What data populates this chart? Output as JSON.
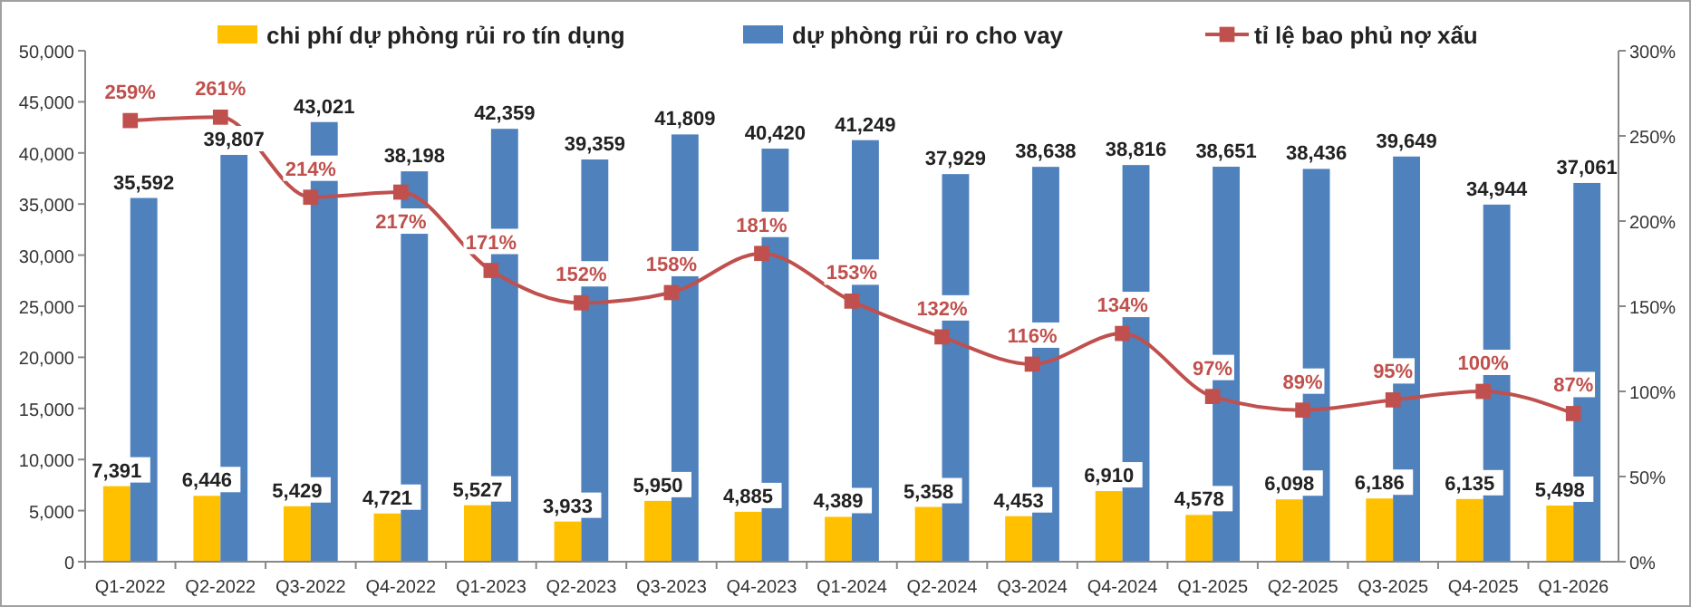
{
  "chart_data": {
    "type": "bar",
    "categories": [
      "Q1-2022",
      "Q2-2022",
      "Q3-2022",
      "Q4-2022",
      "Q1-2023",
      "Q2-2023",
      "Q3-2023",
      "Q4-2023",
      "Q1-2024",
      "Q2-2024",
      "Q3-2024",
      "Q4-2024",
      "Q1-2025",
      "Q2-2025",
      "Q3-2025",
      "Q4-2025",
      "Q1-2026"
    ],
    "series": [
      {
        "name": "chi phí dự phòng rủi ro tín dụng",
        "color": "#ffc000",
        "values": [
          7391,
          6446,
          5429,
          4721,
          5527,
          3933,
          5950,
          4885,
          4389,
          5358,
          4453,
          6910,
          4578,
          6098,
          6186,
          6135,
          5498
        ],
        "value_labels": [
          "7,391",
          "6,446",
          "5,429",
          "4,721",
          "5,527",
          "3,933",
          "5,950",
          "4,885",
          "4,389",
          "5,358",
          "4,453",
          "6,910",
          "4,578",
          "6,098",
          "6,186",
          "6,135",
          "5,498"
        ]
      },
      {
        "name": "dự phòng rủi ro cho vay",
        "color": "#4f81bd",
        "values": [
          35592,
          39807,
          43021,
          38198,
          42359,
          39359,
          41809,
          40420,
          41249,
          37929,
          38638,
          38816,
          38651,
          38436,
          39649,
          34944,
          37061
        ],
        "value_labels": [
          "35,592",
          "39,807",
          "43,021",
          "38,198",
          "42,359",
          "39,359",
          "41,809",
          "40,420",
          "41,249",
          "37,929",
          "38,638",
          "38,816",
          "38,651",
          "38,436",
          "39,649",
          "34,944",
          "37,061"
        ]
      },
      {
        "name": "tỉ lệ bao phủ nợ xấu",
        "type": "line",
        "axis": "y2",
        "color": "#c0504d",
        "marker": "square",
        "values": [
          259,
          261,
          214,
          217,
          171,
          152,
          158,
          181,
          153,
          132,
          116,
          134,
          97,
          89,
          95,
          100,
          87
        ],
        "value_labels": [
          "259%",
          "261%",
          "214%",
          "217%",
          "171%",
          "152%",
          "158%",
          "181%",
          "153%",
          "132%",
          "116%",
          "134%",
          "97%",
          "89%",
          "95%",
          "100%",
          "87%"
        ]
      }
    ],
    "ylim": [
      0,
      50000
    ],
    "yticks": [
      {
        "value": 0,
        "label": "0"
      },
      {
        "value": 5000,
        "label": "5,000"
      },
      {
        "value": 10000,
        "label": "10,000"
      },
      {
        "value": 15000,
        "label": "15,000"
      },
      {
        "value": 20000,
        "label": "20,000"
      },
      {
        "value": 25000,
        "label": "25,000"
      },
      {
        "value": 30000,
        "label": "30,000"
      },
      {
        "value": 35000,
        "label": "35,000"
      },
      {
        "value": 40000,
        "label": "40,000"
      },
      {
        "value": 45000,
        "label": "45,000"
      },
      {
        "value": 50000,
        "label": "50,000"
      }
    ],
    "y2lim": [
      0,
      300
    ],
    "y2ticks": [
      {
        "value": 0,
        "label": "0%"
      },
      {
        "value": 50,
        "label": "50%"
      },
      {
        "value": 100,
        "label": "100%"
      },
      {
        "value": 150,
        "label": "150%"
      },
      {
        "value": 200,
        "label": "200%"
      },
      {
        "value": 250,
        "label": "250%"
      },
      {
        "value": 300,
        "label": "300%"
      }
    ],
    "legend": "top",
    "grid": false
  }
}
